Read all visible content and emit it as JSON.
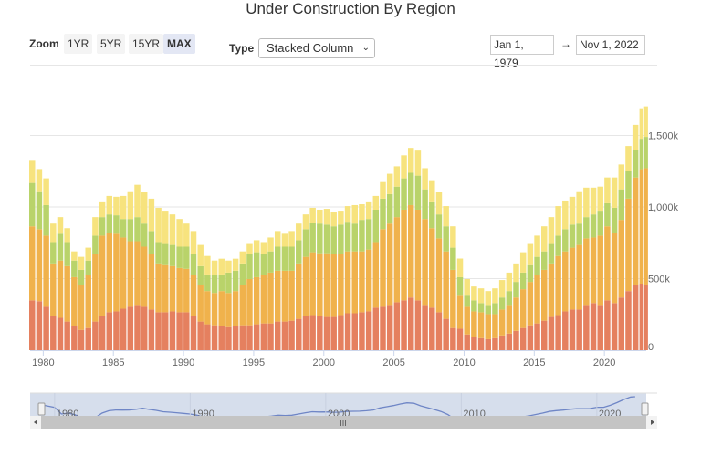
{
  "title": "Under Construction By Region",
  "controls": {
    "zoom_label": "Zoom",
    "zoom_buttons": [
      "1YR",
      "5YR",
      "15YR",
      "MAX"
    ],
    "zoom_active": "MAX",
    "type_label": "Type",
    "type_value": "Stacked Column",
    "date_from": "Jan 1, 1979",
    "date_arrow": "→",
    "date_to": "Nov 1, 2022"
  },
  "navigator": {
    "tick_labels": [
      "1980",
      "1990",
      "2000",
      "2010",
      "2020"
    ],
    "line_color": "#6f86c6",
    "mask_color": "#d6deec",
    "scrollbar_grip": "III"
  },
  "chart_data": {
    "type": "bar",
    "stacked": true,
    "title": "Under Construction By Region",
    "xlabel": "",
    "ylabel": "",
    "ylim": [
      0,
      1750
    ],
    "y_unit": "k",
    "y_ticks": [
      "0",
      "500k",
      "1,000k",
      "1,500k"
    ],
    "y_tick_values": [
      0,
      500,
      1000,
      1500
    ],
    "x_ticks": [
      "1980",
      "1985",
      "1990",
      "1995",
      "2000",
      "2005",
      "2010",
      "2015",
      "2020"
    ],
    "grid": true,
    "legend": "none",
    "x": [
      "1979-01",
      "1979-07",
      "1980-01",
      "1980-07",
      "1981-01",
      "1981-07",
      "1982-01",
      "1982-07",
      "1983-01",
      "1983-07",
      "1984-01",
      "1984-07",
      "1985-01",
      "1985-07",
      "1986-01",
      "1986-07",
      "1987-01",
      "1987-07",
      "1988-01",
      "1988-07",
      "1989-01",
      "1989-07",
      "1990-01",
      "1990-07",
      "1991-01",
      "1991-07",
      "1992-01",
      "1992-07",
      "1993-01",
      "1993-07",
      "1994-01",
      "1994-07",
      "1995-01",
      "1995-07",
      "1996-01",
      "1996-07",
      "1997-01",
      "1997-07",
      "1998-01",
      "1998-07",
      "1999-01",
      "1999-07",
      "2000-01",
      "2000-07",
      "2001-01",
      "2001-07",
      "2002-01",
      "2002-07",
      "2003-01",
      "2003-07",
      "2004-01",
      "2004-07",
      "2005-01",
      "2005-07",
      "2006-01",
      "2006-07",
      "2007-01",
      "2007-07",
      "2008-01",
      "2008-07",
      "2009-01",
      "2009-07",
      "2010-01",
      "2010-07",
      "2011-01",
      "2011-07",
      "2012-01",
      "2012-07",
      "2013-01",
      "2013-07",
      "2014-01",
      "2014-07",
      "2015-01",
      "2015-07",
      "2016-01",
      "2016-07",
      "2017-01",
      "2017-07",
      "2018-01",
      "2018-07",
      "2019-01",
      "2019-07",
      "2020-01",
      "2020-07",
      "2021-01",
      "2021-07",
      "2022-01",
      "2022-07",
      "2022-11"
    ],
    "series": [
      {
        "color": "#e5805f",
        "values": [
          348,
          342,
          303,
          239,
          226,
          200,
          168,
          142,
          155,
          200,
          239,
          265,
          271,
          290,
          303,
          316,
          303,
          284,
          265,
          265,
          271,
          265,
          265,
          239,
          200,
          181,
          174,
          168,
          161,
          168,
          174,
          174,
          181,
          187,
          187,
          200,
          200,
          206,
          219,
          239,
          245,
          239,
          232,
          232,
          245,
          258,
          258,
          265,
          271,
          297,
          303,
          316,
          335,
          348,
          368,
          348,
          316,
          297,
          265,
          219,
          155,
          150,
          110,
          90,
          84,
          77,
          84,
          103,
          116,
          135,
          155,
          174,
          187,
          206,
          232,
          245,
          271,
          284,
          284,
          316,
          329,
          316,
          348,
          329,
          368,
          413,
          458,
          465,
          458
        ]
      },
      {
        "color": "#f0b24c",
        "values": [
          517,
          503,
          497,
          367,
          400,
          387,
          342,
          316,
          368,
          471,
          561,
          554,
          542,
          497,
          458,
          445,
          420,
          387,
          341,
          329,
          316,
          309,
          303,
          284,
          258,
          232,
          226,
          245,
          239,
          245,
          284,
          323,
          329,
          336,
          355,
          355,
          355,
          349,
          387,
          413,
          439,
          438,
          445,
          439,
          426,
          432,
          432,
          425,
          432,
          458,
          542,
          568,
          594,
          633,
          645,
          633,
          600,
          555,
          516,
          471,
          406,
          230,
          193,
          181,
          181,
          175,
          168,
          181,
          200,
          233,
          271,
          303,
          336,
          355,
          374,
          413,
          419,
          432,
          451,
          465,
          458,
          484,
          517,
          490,
          542,
          645,
          748,
          799,
          813
        ]
      },
      {
        "color": "#b9d36a",
        "values": [
          303,
          265,
          213,
          149,
          187,
          168,
          116,
          103,
          103,
          129,
          129,
          129,
          129,
          129,
          155,
          168,
          161,
          161,
          149,
          154,
          148,
          149,
          155,
          148,
          129,
          116,
          123,
          116,
          142,
          142,
          148,
          174,
          174,
          147,
          148,
          168,
          168,
          168,
          162,
          193,
          206,
          207,
          200,
          194,
          206,
          207,
          194,
          220,
          213,
          226,
          213,
          206,
          213,
          219,
          226,
          238,
          207,
          187,
          167,
          175,
          155,
          130,
          78,
          77,
          64,
          64,
          77,
          84,
          97,
          109,
          116,
          117,
          129,
          129,
          142,
          142,
          155,
          161,
          149,
          148,
          161,
          174,
          161,
          175,
          213,
          194,
          194,
          213,
          219
        ]
      },
      {
        "color": "#f7e37e",
        "values": [
          161,
          155,
          187,
          129,
          116,
          97,
          64,
          91,
          90,
          129,
          110,
          129,
          129,
          161,
          194,
          226,
          219,
          226,
          239,
          226,
          213,
          193,
          161,
          161,
          148,
          129,
          103,
          110,
          84,
          84,
          84,
          77,
          84,
          85,
          97,
          109,
          90,
          109,
          116,
          103,
          104,
          97,
          110,
          103,
          97,
          109,
          129,
          109,
          123,
          96,
          116,
          142,
          142,
          161,
          174,
          175,
          148,
          148,
          155,
          141,
          149,
          130,
          116,
          97,
          103,
          97,
          103,
          122,
          129,
          129,
          142,
          154,
          148,
          175,
          181,
          206,
          200,
          194,
          226,
          206,
          187,
          168,
          180,
          212,
          174,
          174,
          174,
          213,
          213
        ]
      }
    ]
  }
}
